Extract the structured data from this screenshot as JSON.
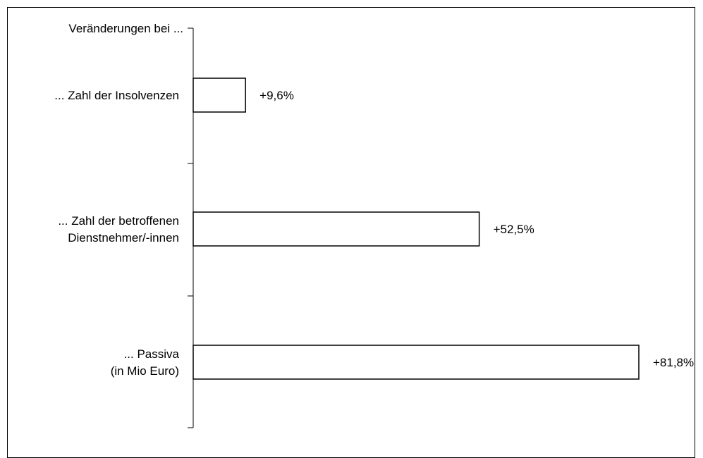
{
  "chart_data": {
    "type": "bar",
    "orientation": "horizontal",
    "heading": "Veränderungen bei ...",
    "categories": [
      [
        "... Zahl der Insolvenzen"
      ],
      [
        "... Zahl der betroffenen",
        "Dienstnehmer/-innen"
      ],
      [
        "... Passiva",
        "(in Mio Euro)"
      ]
    ],
    "values": [
      9.6,
      52.5,
      81.8
    ],
    "value_labels": [
      "+9,6%",
      "+52,5%",
      "+81,8%"
    ],
    "xlim": [
      0,
      81.8
    ],
    "grid": false,
    "colors": {
      "bar_fill": "#ffffff",
      "bar_stroke": "#000000",
      "axis": "#000000"
    }
  }
}
